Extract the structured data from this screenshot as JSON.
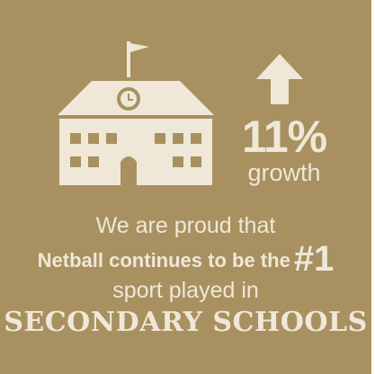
{
  "icons": {
    "school": "school-building-icon",
    "arrow": "arrow-up-icon"
  },
  "colors": {
    "background": "#a89060",
    "foreground": "#efe8d8"
  },
  "stat": {
    "value": "11%",
    "label": "growth"
  },
  "message": {
    "line1": "We are proud that",
    "line2": "Netball continues to be the",
    "rank": "#1",
    "line3": "sport played in",
    "line4": "SECONDARY SCHOOLS"
  }
}
